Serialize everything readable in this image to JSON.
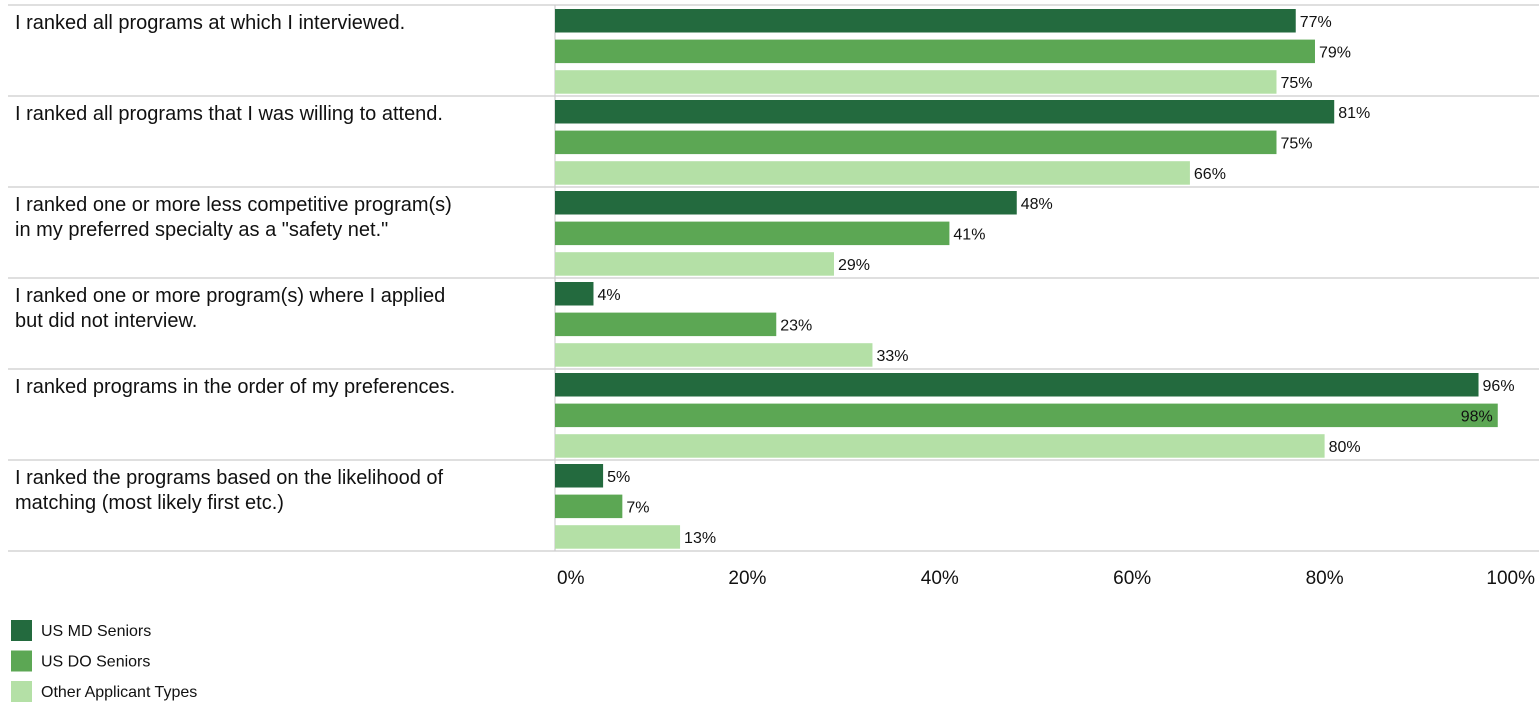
{
  "chart_data": {
    "type": "bar",
    "orientation": "horizontal",
    "categories": [
      [
        "I ranked all programs at which I interviewed."
      ],
      [
        "I ranked all programs that I was willing to attend."
      ],
      [
        "I ranked one or more less competitive program(s)",
        "in my preferred specialty as a \"safety net.\""
      ],
      [
        "I ranked one or more program(s) where I applied",
        "but did not interview."
      ],
      [
        "I ranked programs in the order of my preferences."
      ],
      [
        "I ranked the programs based on the likelihood of",
        "matching (most likely first etc.)"
      ]
    ],
    "series": [
      {
        "name": "US MD Seniors",
        "color": "#236a3e",
        "values": [
          77,
          81,
          48,
          4,
          96,
          5
        ]
      },
      {
        "name": "US DO Seniors",
        "color": "#5ca754",
        "values": [
          79,
          75,
          41,
          23,
          98,
          7
        ]
      },
      {
        "name": "Other Applicant Types",
        "color": "#b4e0a6",
        "values": [
          75,
          66,
          29,
          33,
          80,
          13
        ]
      }
    ],
    "value_labels": [
      [
        "77%",
        "81%",
        "48%",
        "4%",
        "96%",
        "5%"
      ],
      [
        "79%",
        "75%",
        "41%",
        "23%",
        "98%",
        "7%"
      ],
      [
        "75%",
        "66%",
        "29%",
        "33%",
        "80%",
        "13%"
      ]
    ],
    "xlim": [
      0,
      100
    ],
    "xticks": [
      0,
      20,
      40,
      60,
      80,
      100
    ],
    "xtick_labels": [
      "0%",
      "20%",
      "40%",
      "60%",
      "80%",
      "100%"
    ],
    "legend_position": "bottom-left",
    "grid": false
  }
}
